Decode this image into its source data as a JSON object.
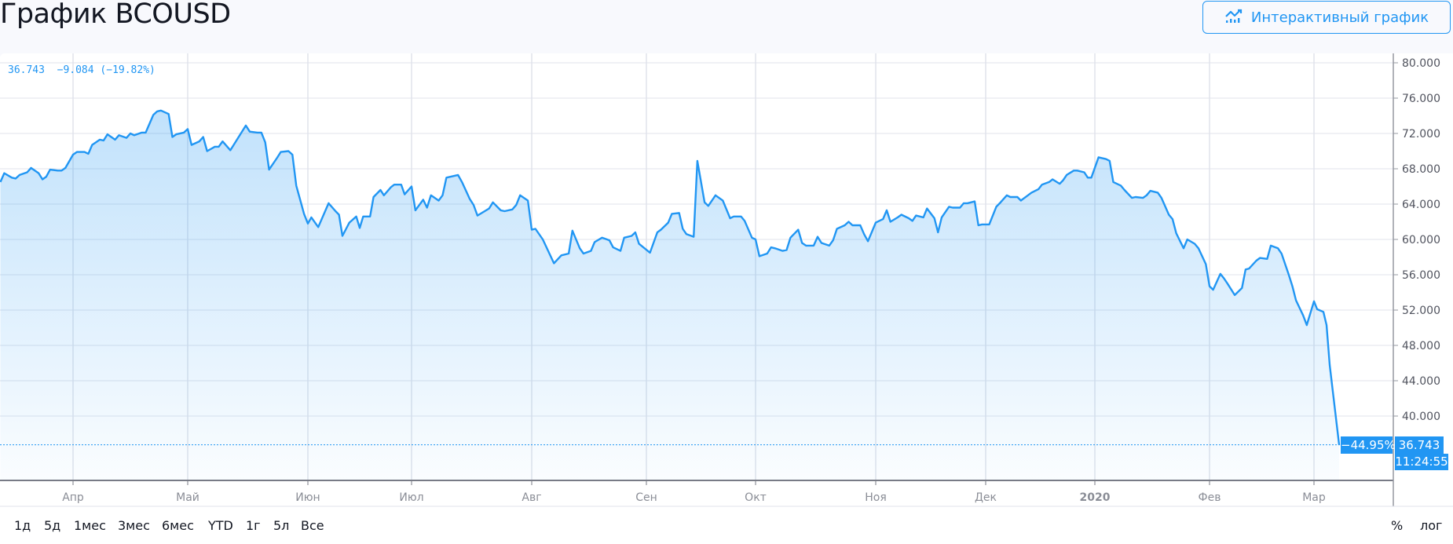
{
  "header": {
    "title": "График BCOUSD",
    "interactive_button_label": "Интерактивный график",
    "interactive_button_icon": "chart-line-icon"
  },
  "legend": {
    "price": "36.743",
    "change": "−9.084",
    "change_pct": "(−19.82%)"
  },
  "price_marker": {
    "change_pct": "−44.95%",
    "price": "36.743",
    "time": "11:24:55"
  },
  "toolbar": {
    "ranges": [
      "1д",
      "5д",
      "1мес",
      "3мес",
      "6мес",
      "YTD",
      "1г",
      "5л",
      "Все"
    ],
    "percent_label": "%",
    "log_label": "лог"
  },
  "colors": {
    "accent": "#2196f3",
    "grid": "#e0e3eb",
    "axis": "#787b86"
  },
  "chart_data": {
    "type": "area",
    "title": "График BCOUSD",
    "xlabel": "",
    "ylabel": "",
    "ylim": [
      32.7,
      81.1
    ],
    "grid": true,
    "y_ticks": [
      "40.000",
      "44.000",
      "48.000",
      "52.000",
      "56.000",
      "60.000",
      "64.000",
      "68.000",
      "72.000",
      "76.000",
      "80.000"
    ],
    "x_ticks": [
      {
        "date": "2019-04-01",
        "label": "Апр"
      },
      {
        "date": "2019-05-01",
        "label": "Май"
      },
      {
        "date": "2019-06-01",
        "label": "Июн"
      },
      {
        "date": "2019-07-01",
        "label": "Июл"
      },
      {
        "date": "2019-08-01",
        "label": "Авг"
      },
      {
        "date": "2019-09-01",
        "label": "Сен"
      },
      {
        "date": "2019-10-01",
        "label": "Окт"
      },
      {
        "date": "2019-11-01",
        "label": "Ноя"
      },
      {
        "date": "2019-12-01",
        "label": "Дек"
      },
      {
        "date": "2020-01-01",
        "label": "2020"
      },
      {
        "date": "2020-02-01",
        "label": "Фев"
      },
      {
        "date": "2020-03-01",
        "label": "Мар"
      }
    ],
    "last_value": 36.743,
    "series": [
      {
        "points": [
          [
            "2019-03-13",
            66.5
          ],
          [
            "2019-03-14",
            67.5
          ],
          [
            "2019-03-16",
            67.0
          ],
          [
            "2019-03-17",
            66.9
          ],
          [
            "2019-03-18",
            67.3
          ],
          [
            "2019-03-20",
            67.6
          ],
          [
            "2019-03-21",
            68.1
          ],
          [
            "2019-03-23",
            67.5
          ],
          [
            "2019-03-24",
            66.8
          ],
          [
            "2019-03-25",
            67.1
          ],
          [
            "2019-03-26",
            67.9
          ],
          [
            "2019-03-28",
            67.8
          ],
          [
            "2019-03-29",
            67.8
          ],
          [
            "2019-03-30",
            68.1
          ],
          [
            "2019-04-01",
            69.6
          ],
          [
            "2019-04-02",
            69.9
          ],
          [
            "2019-04-04",
            69.9
          ],
          [
            "2019-04-05",
            69.7
          ],
          [
            "2019-04-06",
            70.7
          ],
          [
            "2019-04-08",
            71.3
          ],
          [
            "2019-04-09",
            71.2
          ],
          [
            "2019-04-10",
            71.9
          ],
          [
            "2019-04-12",
            71.3
          ],
          [
            "2019-04-13",
            71.8
          ],
          [
            "2019-04-15",
            71.5
          ],
          [
            "2019-04-16",
            72.0
          ],
          [
            "2019-04-17",
            71.8
          ],
          [
            "2019-04-19",
            72.1
          ],
          [
            "2019-04-20",
            72.1
          ],
          [
            "2019-04-22",
            74.1
          ],
          [
            "2019-04-23",
            74.5
          ],
          [
            "2019-04-24",
            74.6
          ],
          [
            "2019-04-26",
            74.2
          ],
          [
            "2019-04-27",
            71.6
          ],
          [
            "2019-04-28",
            71.9
          ],
          [
            "2019-04-30",
            72.1
          ],
          [
            "2019-05-01",
            72.5
          ],
          [
            "2019-05-02",
            70.7
          ],
          [
            "2019-05-04",
            71.1
          ],
          [
            "2019-05-05",
            71.6
          ],
          [
            "2019-05-06",
            70.0
          ],
          [
            "2019-05-08",
            70.5
          ],
          [
            "2019-05-09",
            70.5
          ],
          [
            "2019-05-10",
            71.1
          ],
          [
            "2019-05-12",
            70.1
          ],
          [
            "2019-05-16",
            72.9
          ],
          [
            "2019-05-17",
            72.2
          ],
          [
            "2019-05-19",
            72.1
          ],
          [
            "2019-05-20",
            72.1
          ],
          [
            "2019-05-21",
            71.0
          ],
          [
            "2019-05-22",
            67.9
          ],
          [
            "2019-05-24",
            69.2
          ],
          [
            "2019-05-25",
            69.9
          ],
          [
            "2019-05-27",
            70.0
          ],
          [
            "2019-05-28",
            69.6
          ],
          [
            "2019-05-29",
            66.1
          ],
          [
            "2019-05-31",
            62.9
          ],
          [
            "2019-06-01",
            61.8
          ],
          [
            "2019-06-02",
            62.5
          ],
          [
            "2019-06-04",
            61.4
          ],
          [
            "2019-06-06",
            63.2
          ],
          [
            "2019-06-07",
            64.1
          ],
          [
            "2019-06-09",
            63.2
          ],
          [
            "2019-06-10",
            62.8
          ],
          [
            "2019-06-11",
            60.4
          ],
          [
            "2019-06-13",
            61.9
          ],
          [
            "2019-06-15",
            62.6
          ],
          [
            "2019-06-16",
            61.3
          ],
          [
            "2019-06-17",
            62.6
          ],
          [
            "2019-06-19",
            62.6
          ],
          [
            "2019-06-20",
            64.8
          ],
          [
            "2019-06-22",
            65.6
          ],
          [
            "2019-06-23",
            65.0
          ],
          [
            "2019-06-25",
            65.9
          ],
          [
            "2019-06-26",
            66.2
          ],
          [
            "2019-06-28",
            66.2
          ],
          [
            "2019-06-29",
            65.1
          ],
          [
            "2019-07-01",
            66.0
          ],
          [
            "2019-07-02",
            63.3
          ],
          [
            "2019-07-04",
            64.5
          ],
          [
            "2019-07-05",
            63.6
          ],
          [
            "2019-07-06",
            65.0
          ],
          [
            "2019-07-08",
            64.4
          ],
          [
            "2019-07-09",
            65.0
          ],
          [
            "2019-07-10",
            67.0
          ],
          [
            "2019-07-13",
            67.3
          ],
          [
            "2019-07-14",
            66.5
          ],
          [
            "2019-07-16",
            64.6
          ],
          [
            "2019-07-17",
            63.9
          ],
          [
            "2019-07-18",
            62.7
          ],
          [
            "2019-07-21",
            63.5
          ],
          [
            "2019-07-22",
            64.2
          ],
          [
            "2019-07-24",
            63.3
          ],
          [
            "2019-07-25",
            63.2
          ],
          [
            "2019-07-27",
            63.4
          ],
          [
            "2019-07-28",
            63.9
          ],
          [
            "2019-07-29",
            65.0
          ],
          [
            "2019-07-31",
            64.4
          ],
          [
            "2019-08-01",
            61.1
          ],
          [
            "2019-08-02",
            61.2
          ],
          [
            "2019-08-04",
            60.0
          ],
          [
            "2019-08-07",
            57.3
          ],
          [
            "2019-08-09",
            58.2
          ],
          [
            "2019-08-11",
            58.4
          ],
          [
            "2019-08-12",
            61.0
          ],
          [
            "2019-08-14",
            59.0
          ],
          [
            "2019-08-15",
            58.4
          ],
          [
            "2019-08-17",
            58.7
          ],
          [
            "2019-08-18",
            59.7
          ],
          [
            "2019-08-20",
            60.2
          ],
          [
            "2019-08-22",
            59.9
          ],
          [
            "2019-08-23",
            59.1
          ],
          [
            "2019-08-25",
            58.7
          ],
          [
            "2019-08-26",
            60.2
          ],
          [
            "2019-08-28",
            60.4
          ],
          [
            "2019-08-29",
            60.8
          ],
          [
            "2019-08-30",
            59.5
          ],
          [
            "2019-09-02",
            58.5
          ],
          [
            "2019-09-04",
            60.8
          ],
          [
            "2019-09-05",
            61.1
          ],
          [
            "2019-09-07",
            61.9
          ],
          [
            "2019-09-08",
            62.9
          ],
          [
            "2019-09-10",
            63.0
          ],
          [
            "2019-09-11",
            61.2
          ],
          [
            "2019-09-12",
            60.6
          ],
          [
            "2019-09-14",
            60.3
          ],
          [
            "2019-09-15",
            68.9
          ],
          [
            "2019-09-17",
            64.2
          ],
          [
            "2019-09-18",
            63.8
          ],
          [
            "2019-09-20",
            65.0
          ],
          [
            "2019-09-22",
            64.4
          ],
          [
            "2019-09-24",
            62.4
          ],
          [
            "2019-09-25",
            62.6
          ],
          [
            "2019-09-27",
            62.6
          ],
          [
            "2019-09-28",
            62.1
          ],
          [
            "2019-09-30",
            60.2
          ],
          [
            "2019-10-01",
            60.0
          ],
          [
            "2019-10-02",
            58.1
          ],
          [
            "2019-10-04",
            58.4
          ],
          [
            "2019-10-05",
            59.1
          ],
          [
            "2019-10-06",
            59.0
          ],
          [
            "2019-10-08",
            58.7
          ],
          [
            "2019-10-09",
            58.8
          ],
          [
            "2019-10-10",
            60.2
          ],
          [
            "2019-10-12",
            61.1
          ],
          [
            "2019-10-13",
            59.6
          ],
          [
            "2019-10-14",
            59.3
          ],
          [
            "2019-10-16",
            59.3
          ],
          [
            "2019-10-17",
            60.3
          ],
          [
            "2019-10-18",
            59.6
          ],
          [
            "2019-10-20",
            59.3
          ],
          [
            "2019-10-21",
            59.9
          ],
          [
            "2019-10-22",
            61.2
          ],
          [
            "2019-10-24",
            61.6
          ],
          [
            "2019-10-25",
            62.0
          ],
          [
            "2019-10-26",
            61.6
          ],
          [
            "2019-10-28",
            61.6
          ],
          [
            "2019-10-29",
            60.6
          ],
          [
            "2019-10-30",
            59.8
          ],
          [
            "2019-11-01",
            61.9
          ],
          [
            "2019-11-03",
            62.3
          ],
          [
            "2019-11-04",
            63.3
          ],
          [
            "2019-11-05",
            62.0
          ],
          [
            "2019-11-07",
            62.5
          ],
          [
            "2019-11-08",
            62.8
          ],
          [
            "2019-11-10",
            62.4
          ],
          [
            "2019-11-11",
            62.1
          ],
          [
            "2019-11-12",
            62.7
          ],
          [
            "2019-11-14",
            62.5
          ],
          [
            "2019-11-15",
            63.5
          ],
          [
            "2019-11-17",
            62.4
          ],
          [
            "2019-11-18",
            60.8
          ],
          [
            "2019-11-19",
            62.5
          ],
          [
            "2019-11-21",
            63.7
          ],
          [
            "2019-11-22",
            63.6
          ],
          [
            "2019-11-24",
            63.6
          ],
          [
            "2019-11-25",
            64.1
          ],
          [
            "2019-11-26",
            64.1
          ],
          [
            "2019-11-28",
            64.3
          ],
          [
            "2019-11-29",
            61.6
          ],
          [
            "2019-11-30",
            61.7
          ],
          [
            "2019-12-02",
            61.7
          ],
          [
            "2019-12-04",
            63.7
          ],
          [
            "2019-12-05",
            64.1
          ],
          [
            "2019-12-07",
            65.0
          ],
          [
            "2019-12-08",
            64.8
          ],
          [
            "2019-12-10",
            64.8
          ],
          [
            "2019-12-11",
            64.4
          ],
          [
            "2019-12-13",
            65.0
          ],
          [
            "2019-12-14",
            65.3
          ],
          [
            "2019-12-16",
            65.7
          ],
          [
            "2019-12-17",
            66.2
          ],
          [
            "2019-12-19",
            66.5
          ],
          [
            "2019-12-20",
            66.8
          ],
          [
            "2019-12-22",
            66.3
          ],
          [
            "2019-12-23",
            66.7
          ],
          [
            "2019-12-24",
            67.3
          ],
          [
            "2019-12-26",
            67.8
          ],
          [
            "2019-12-27",
            67.8
          ],
          [
            "2019-12-29",
            67.6
          ],
          [
            "2019-12-30",
            67.0
          ],
          [
            "2019-12-31",
            67.0
          ],
          [
            "2020-01-02",
            69.3
          ],
          [
            "2020-01-04",
            69.1
          ],
          [
            "2020-01-05",
            68.9
          ],
          [
            "2020-01-06",
            66.5
          ],
          [
            "2020-01-08",
            66.1
          ],
          [
            "2020-01-09",
            65.6
          ],
          [
            "2020-01-11",
            64.7
          ],
          [
            "2020-01-12",
            64.8
          ],
          [
            "2020-01-14",
            64.7
          ],
          [
            "2020-01-15",
            65.0
          ],
          [
            "2020-01-16",
            65.5
          ],
          [
            "2020-01-18",
            65.3
          ],
          [
            "2020-01-19",
            64.7
          ],
          [
            "2020-01-21",
            62.8
          ],
          [
            "2020-01-22",
            62.3
          ],
          [
            "2020-01-23",
            60.7
          ],
          [
            "2020-01-25",
            59.0
          ],
          [
            "2020-01-26",
            60.0
          ],
          [
            "2020-01-28",
            59.5
          ],
          [
            "2020-01-29",
            59.0
          ],
          [
            "2020-01-31",
            57.2
          ],
          [
            "2020-02-01",
            54.7
          ],
          [
            "2020-02-02",
            54.3
          ],
          [
            "2020-02-04",
            56.1
          ],
          [
            "2020-02-05",
            55.6
          ],
          [
            "2020-02-06",
            55.0
          ],
          [
            "2020-02-08",
            53.7
          ],
          [
            "2020-02-10",
            54.5
          ],
          [
            "2020-02-11",
            56.6
          ],
          [
            "2020-02-12",
            56.7
          ],
          [
            "2020-02-14",
            57.6
          ],
          [
            "2020-02-15",
            57.9
          ],
          [
            "2020-02-17",
            57.8
          ],
          [
            "2020-02-18",
            59.3
          ],
          [
            "2020-02-20",
            59.0
          ],
          [
            "2020-02-21",
            58.4
          ],
          [
            "2020-02-23",
            56.0
          ],
          [
            "2020-02-24",
            54.7
          ],
          [
            "2020-02-25",
            53.1
          ],
          [
            "2020-02-27",
            51.4
          ],
          [
            "2020-02-28",
            50.3
          ],
          [
            "2020-03-01",
            53.0
          ],
          [
            "2020-03-02",
            52.1
          ],
          [
            "2020-03-04",
            51.8
          ],
          [
            "2020-03-05",
            50.3
          ],
          [
            "2020-03-06",
            45.8
          ],
          [
            "2020-03-09",
            36.743
          ]
        ]
      }
    ]
  }
}
